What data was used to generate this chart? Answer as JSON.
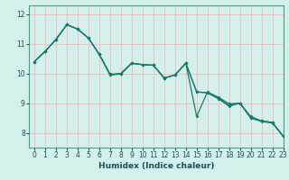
{
  "xlabel": "Humidex (Indice chaleur)",
  "background_color": "#d4f0ec",
  "grid_color": "#f5b8b8",
  "line_color": "#1a7a6a",
  "xlim": [
    -0.5,
    23
  ],
  "ylim": [
    7.5,
    12.3
  ],
  "yticks": [
    8,
    9,
    10,
    11,
    12
  ],
  "xticks": [
    0,
    1,
    2,
    3,
    4,
    5,
    6,
    7,
    8,
    9,
    10,
    11,
    12,
    13,
    14,
    15,
    16,
    17,
    18,
    19,
    20,
    21,
    22,
    23
  ],
  "series": [
    [
      10.4,
      10.75,
      11.15,
      11.65,
      11.5,
      11.2,
      10.65,
      9.95,
      10.0,
      10.35,
      10.3,
      10.28,
      9.85,
      9.95,
      10.35,
      8.55,
      9.38,
      9.2,
      8.98,
      9.0,
      8.55,
      8.4,
      8.35,
      7.88
    ],
    [
      10.4,
      10.75,
      11.15,
      11.65,
      11.5,
      11.2,
      10.65,
      9.98,
      10.0,
      10.35,
      10.3,
      10.28,
      9.85,
      9.95,
      10.35,
      9.38,
      9.35,
      9.18,
      8.92,
      9.0,
      8.5,
      8.4,
      8.35,
      7.88
    ],
    [
      10.4,
      10.75,
      11.15,
      11.65,
      11.5,
      11.2,
      10.65,
      9.96,
      9.98,
      10.35,
      10.3,
      10.28,
      9.85,
      9.95,
      10.35,
      9.38,
      9.35,
      9.15,
      8.9,
      9.0,
      8.5,
      8.38,
      8.33,
      7.88
    ]
  ],
  "tick_fontsize": 5.5,
  "xlabel_fontsize": 6.5,
  "linewidth": 0.9,
  "markersize": 2.0
}
